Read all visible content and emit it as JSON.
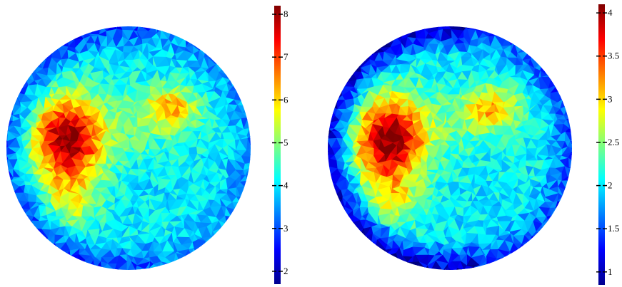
{
  "chart_data": [
    {
      "type": "heatmap",
      "title": "",
      "xlabel": "",
      "ylabel": "",
      "colormap": "jet",
      "domain_shape": "disk (triangulated mesh)",
      "colorbar": {
        "min": 1.7,
        "max": 8.2,
        "ticks": [
          2,
          3,
          4,
          5,
          6,
          7,
          8
        ],
        "tick_labels": [
          "2",
          "3",
          "4",
          "5",
          "6",
          "7",
          "8"
        ]
      },
      "hotspots": [
        {
          "region": "left",
          "peak_value": 8.0,
          "description": "large dark-red region"
        },
        {
          "region": "upper-right",
          "peak_value": 6.3,
          "description": "small orange/yellow patch"
        }
      ],
      "background_value": 3.6
    },
    {
      "type": "heatmap",
      "title": "",
      "xlabel": "",
      "ylabel": "",
      "colormap": "jet",
      "domain_shape": "disk (triangulated mesh)",
      "colorbar": {
        "min": 0.85,
        "max": 4.1,
        "ticks": [
          1,
          1.5,
          2,
          2.5,
          3,
          3.5,
          4
        ],
        "tick_labels": [
          "1",
          "1.5",
          "2",
          "2.5",
          "3",
          "3.5",
          "4"
        ]
      },
      "hotspots": [
        {
          "region": "left",
          "peak_value": 3.9,
          "description": "large dark-red region"
        },
        {
          "region": "upper-right",
          "peak_value": 3.1,
          "description": "small orange/yellow patch"
        }
      ],
      "background_value": 1.9
    }
  ]
}
